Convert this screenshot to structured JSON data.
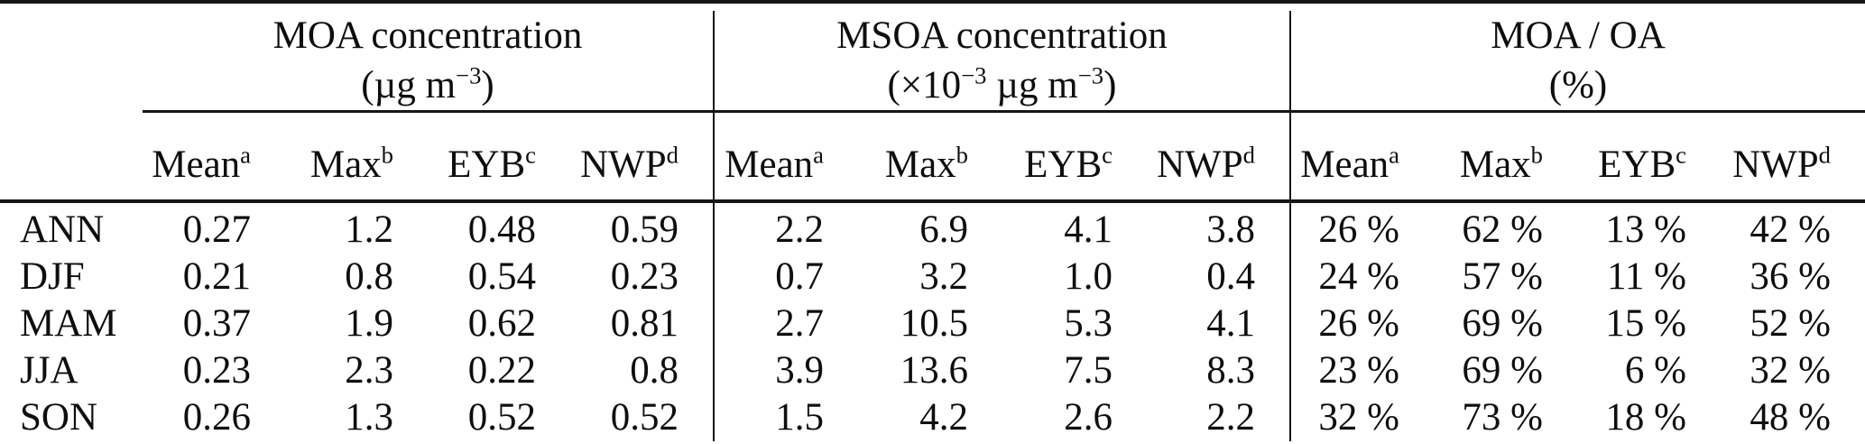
{
  "table": {
    "corner_label": "",
    "groups": [
      {
        "title": "MOA concentration",
        "unit_segments": [
          {
            "t": "(µg m"
          },
          {
            "s": "−3"
          },
          {
            "t": ")"
          }
        ],
        "columns": [
          {
            "label": "Mean",
            "sup": "a"
          },
          {
            "label": "Max",
            "sup": "b"
          },
          {
            "label": "EYB",
            "sup": "c"
          },
          {
            "label": "NWP",
            "sup": "d"
          }
        ]
      },
      {
        "title": "MSOA concentration",
        "unit_segments": [
          {
            "t": "(×10"
          },
          {
            "s": "−3"
          },
          {
            "t": " µg m"
          },
          {
            "s": "−3"
          },
          {
            "t": ")"
          }
        ],
        "columns": [
          {
            "label": "Mean",
            "sup": "a"
          },
          {
            "label": "Max",
            "sup": "b"
          },
          {
            "label": "EYB",
            "sup": "c"
          },
          {
            "label": "NWP",
            "sup": "d"
          }
        ]
      },
      {
        "title": "MOA / OA",
        "unit_segments": [
          {
            "t": "(%)"
          }
        ],
        "columns": [
          {
            "label": "Mean",
            "sup": "a"
          },
          {
            "label": "Max",
            "sup": "b"
          },
          {
            "label": "EYB",
            "sup": "c"
          },
          {
            "label": "NWP",
            "sup": "d"
          }
        ]
      }
    ],
    "rows": [
      {
        "label": "ANN",
        "moa": [
          "0.27",
          "1.2",
          "0.48",
          "0.59"
        ],
        "msoa": [
          "2.2",
          "6.9",
          "4.1",
          "3.8"
        ],
        "moa_oa": [
          "26 %",
          "62 %",
          "13 %",
          "42 %"
        ]
      },
      {
        "label": "DJF",
        "moa": [
          "0.21",
          "0.8",
          "0.54",
          "0.23"
        ],
        "msoa": [
          "0.7",
          "3.2",
          "1.0",
          "0.4"
        ],
        "moa_oa": [
          "24 %",
          "57 %",
          "11 %",
          "36 %"
        ]
      },
      {
        "label": "MAM",
        "moa": [
          "0.37",
          "1.9",
          "0.62",
          "0.81"
        ],
        "msoa": [
          "2.7",
          "10.5",
          "5.3",
          "4.1"
        ],
        "moa_oa": [
          "26 %",
          "69 %",
          "15 %",
          "52 %"
        ]
      },
      {
        "label": "JJA",
        "moa": [
          "0.23",
          "2.3",
          "0.22",
          "0.8"
        ],
        "msoa": [
          "3.9",
          "13.6",
          "7.5",
          "8.3"
        ],
        "moa_oa": [
          "23 %",
          "69 %",
          "6 %",
          "32 %"
        ]
      },
      {
        "label": "SON",
        "moa": [
          "0.26",
          "1.3",
          "0.52",
          "0.52"
        ],
        "msoa": [
          "1.5",
          "4.2",
          "2.6",
          "2.2"
        ],
        "moa_oa": [
          "32 %",
          "73 %",
          "18 %",
          "48 %"
        ]
      }
    ]
  },
  "colors": {
    "background": "#ffffff",
    "text": "#0e0e0e",
    "rule": "#161616"
  }
}
